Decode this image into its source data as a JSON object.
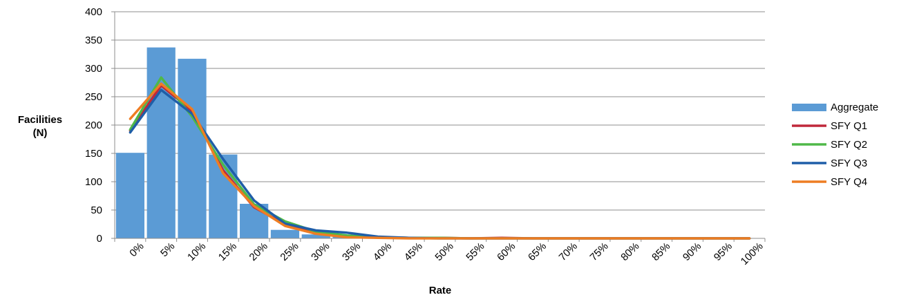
{
  "chart_data": {
    "type": "bar",
    "categories": [
      "0%",
      "5%",
      "10%",
      "15%",
      "20%",
      "25%",
      "30%",
      "35%",
      "40%",
      "45%",
      "50%",
      "55%",
      "60%",
      "65%",
      "70%",
      "75%",
      "80%",
      "85%",
      "90%",
      "95%",
      "100%"
    ],
    "ylim": [
      0,
      400
    ],
    "yticks": [
      "0",
      "50",
      "100",
      "150",
      "200",
      "250",
      "300",
      "350",
      "400"
    ],
    "ylabel_line1": "Facilities",
    "ylabel_line2": "(N)",
    "xlabel": "Rate",
    "grid": true,
    "legend_position": "right",
    "series": [
      {
        "name": "Aggregate",
        "kind": "bar",
        "color": "#5b9bd5",
        "values": [
          151,
          337,
          317,
          148,
          61,
          15,
          7,
          3,
          1,
          1,
          0,
          0,
          0,
          0,
          0,
          0,
          0,
          0,
          0,
          0,
          0
        ]
      },
      {
        "name": "SFY Q1",
        "kind": "line",
        "color": "#c0283a",
        "values": [
          190,
          270,
          225,
          120,
          55,
          25,
          10,
          4,
          2,
          1,
          1,
          0,
          1,
          0,
          0,
          0,
          0,
          0,
          0,
          0,
          0
        ]
      },
      {
        "name": "SFY Q2",
        "kind": "line",
        "color": "#4fb848",
        "values": [
          192,
          284,
          215,
          130,
          60,
          30,
          12,
          5,
          2,
          1,
          1,
          0,
          0,
          0,
          0,
          0,
          0,
          0,
          0,
          0,
          0
        ]
      },
      {
        "name": "SFY Q3",
        "kind": "line",
        "color": "#1f5ea8",
        "values": [
          187,
          262,
          220,
          140,
          67,
          26,
          14,
          10,
          3,
          1,
          0,
          0,
          0,
          0,
          0,
          0,
          0,
          0,
          0,
          0,
          0
        ]
      },
      {
        "name": "SFY Q4",
        "kind": "line",
        "color": "#ee7d23",
        "values": [
          211,
          273,
          228,
          115,
          57,
          22,
          8,
          2,
          1,
          0,
          0,
          0,
          0,
          0,
          0,
          0,
          0,
          0,
          0,
          0,
          0
        ]
      }
    ]
  }
}
